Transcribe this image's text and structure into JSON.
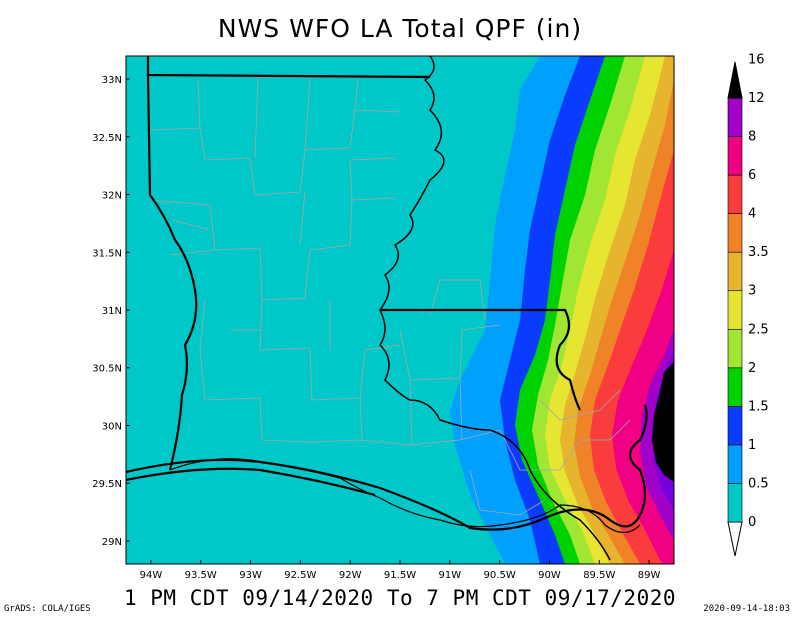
{
  "title": "NWS WFO LA Total QPF (in)",
  "valid_period": "1 PM CDT 09/14/2020 To 7 PM CDT 09/17/2020",
  "credit": "GrADS: COLA/IGES",
  "timestamp": "2020-09-14-18:03",
  "map": {
    "lat_ticks": [
      "33N",
      "32.5N",
      "32N",
      "31.5N",
      "31N",
      "30.5N",
      "30N",
      "29.5N",
      "29N"
    ],
    "lon_ticks": [
      "94W",
      "93.5W",
      "93W",
      "92.5W",
      "92W",
      "91.5W",
      "91W",
      "90.5W",
      "90W",
      "89.5W",
      "89W"
    ],
    "lon_range": [
      -94.25,
      -88.75
    ],
    "lat_range": [
      28.8,
      33.2
    ]
  },
  "colorbar": {
    "labels": [
      "0",
      "0.5",
      "1",
      "1.5",
      "2",
      "2.5",
      "3",
      "3.5",
      "4",
      "6",
      "8",
      "12",
      "16"
    ],
    "colors": [
      "#00c8c8",
      "#00a0ff",
      "#0a3cff",
      "#00d200",
      "#a0e632",
      "#e6e632",
      "#e6b42d",
      "#f08228",
      "#fa3c3c",
      "#f00082",
      "#a000c8",
      "#7800dc",
      "#000000"
    ]
  }
}
